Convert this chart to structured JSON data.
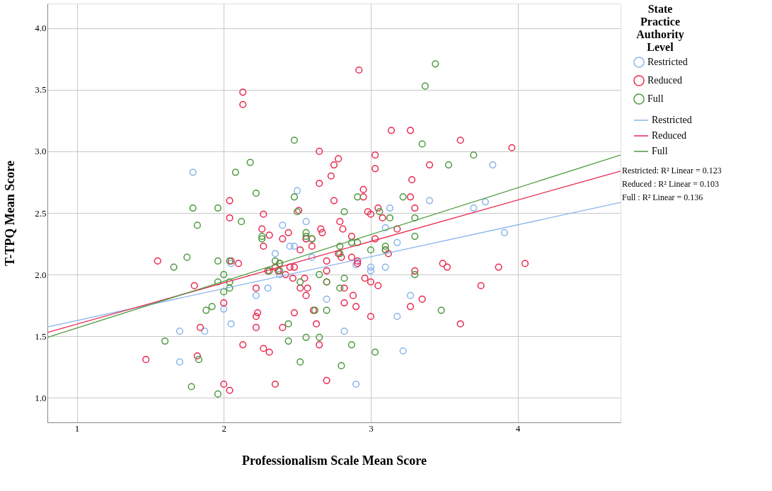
{
  "chart_data": {
    "type": "scatter",
    "xlabel": "Professionalism Scale Mean Score",
    "ylabel": "T-TPQ Mean Score",
    "legend_title": "State Practice Authority Level",
    "legend": "right",
    "grid": true,
    "xlim": [
      0.8,
      4.7
    ],
    "ylim": [
      0.8,
      4.2
    ],
    "xticks": [
      1,
      2,
      3,
      4
    ],
    "yticks": [
      {
        "value": 1,
        "label": "1.0"
      },
      {
        "value": 1.5,
        "label": "1.5"
      },
      {
        "value": 2,
        "label": "2.0"
      },
      {
        "value": 2.5,
        "label": "2.5"
      },
      {
        "value": 3,
        "label": "3.0"
      },
      {
        "value": 3.5,
        "label": "3.5"
      },
      {
        "value": 4,
        "label": "4.0"
      }
    ],
    "annotations": [
      "Restricted: R² Linear = 0.123",
      "Reduced : R² Linear = 0.103",
      "Full : R² Linear = 0.136"
    ],
    "series": [
      {
        "name": "Restricted",
        "type": "scatter",
        "color": "#8ab4ec",
        "x": [
          1.79,
          1.7,
          1.7,
          1.87,
          2.0,
          2.05,
          2.05,
          2.22,
          2.3,
          2.35,
          2.4,
          2.45,
          2.5,
          2.48,
          2.56,
          2.56,
          2.6,
          2.7,
          2.82,
          2.9,
          2.9,
          3.0,
          3.0,
          3.1,
          3.1,
          3.13,
          3.18,
          3.18,
          3.22,
          3.27,
          3.4,
          3.7,
          3.78,
          3.83,
          3.91,
          2.38
        ],
        "values": [
          2.83,
          1.54,
          1.29,
          1.54,
          1.72,
          1.6,
          2.09,
          1.83,
          1.89,
          2.17,
          2.4,
          2.23,
          2.68,
          2.23,
          2.43,
          2.29,
          2.14,
          1.8,
          1.54,
          1.11,
          2.08,
          2.06,
          2.03,
          2.06,
          2.38,
          2.54,
          2.26,
          1.66,
          1.38,
          1.83,
          2.6,
          2.54,
          2.59,
          2.89,
          2.34,
          2.0
        ]
      },
      {
        "name": "Reduced",
        "type": "scatter",
        "color": "#e8294f",
        "x": [
          1.47,
          1.55,
          1.8,
          1.82,
          1.84,
          2.0,
          2.0,
          2.04,
          2.04,
          2.04,
          2.05,
          2.1,
          2.13,
          2.13,
          2.13,
          2.22,
          2.22,
          2.22,
          2.23,
          2.26,
          2.27,
          2.27,
          2.27,
          2.3,
          2.31,
          2.31,
          2.35,
          2.35,
          2.37,
          2.38,
          2.4,
          2.4,
          2.42,
          2.44,
          2.45,
          2.47,
          2.48,
          2.48,
          2.51,
          2.52,
          2.52,
          2.55,
          2.56,
          2.56,
          2.57,
          2.6,
          2.6,
          2.61,
          2.63,
          2.65,
          2.65,
          2.66,
          2.65,
          2.67,
          2.7,
          2.7,
          2.7,
          2.7,
          2.73,
          2.75,
          2.75,
          2.78,
          2.79,
          2.78,
          2.8,
          2.81,
          2.82,
          2.82,
          2.87,
          2.87,
          2.88,
          2.9,
          2.91,
          2.91,
          2.92,
          2.95,
          2.95,
          2.96,
          2.98,
          3.0,
          3.0,
          3.0,
          3.03,
          3.03,
          3.03,
          3.05,
          3.05,
          3.08,
          3.1,
          3.12,
          3.14,
          3.18,
          3.27,
          3.28,
          3.27,
          3.27,
          3.3,
          3.3,
          3.35,
          3.4,
          3.49,
          3.52,
          3.61,
          3.61,
          3.75,
          3.87,
          3.96,
          4.05
        ],
        "values": [
          1.31,
          2.11,
          1.91,
          1.34,
          1.57,
          1.77,
          1.11,
          1.06,
          2.6,
          2.46,
          2.11,
          2.09,
          3.48,
          3.38,
          1.43,
          1.89,
          1.66,
          1.57,
          1.69,
          2.37,
          2.23,
          2.49,
          1.4,
          2.03,
          2.32,
          1.37,
          1.11,
          2.06,
          2.03,
          2.09,
          2.29,
          1.57,
          2.0,
          2.34,
          2.06,
          1.97,
          2.06,
          1.69,
          2.52,
          1.89,
          2.2,
          1.97,
          2.29,
          1.83,
          1.89,
          2.29,
          2.23,
          1.71,
          1.6,
          3.0,
          2.74,
          2.37,
          1.43,
          2.34,
          2.11,
          2.03,
          1.94,
          1.14,
          2.8,
          2.89,
          2.6,
          2.94,
          2.43,
          2.17,
          2.14,
          2.37,
          1.89,
          1.77,
          2.31,
          2.14,
          1.83,
          1.74,
          2.09,
          2.11,
          3.66,
          2.69,
          2.63,
          1.97,
          2.51,
          2.49,
          1.94,
          1.66,
          2.97,
          2.86,
          2.29,
          2.54,
          1.91,
          2.46,
          2.2,
          2.17,
          3.17,
          2.37,
          3.17,
          2.77,
          2.63,
          1.74,
          2.54,
          2.03,
          1.8,
          2.89,
          2.09,
          2.06,
          3.09,
          1.6,
          1.91,
          2.06,
          3.03,
          2.09
        ]
      },
      {
        "name": "Full",
        "type": "scatter",
        "color": "#4c9a3e",
        "x": [
          1.6,
          1.66,
          1.75,
          1.79,
          1.78,
          1.82,
          1.83,
          1.88,
          1.92,
          1.96,
          1.96,
          1.96,
          1.96,
          2.0,
          2.0,
          2.04,
          2.04,
          2.04,
          2.08,
          2.12,
          2.18,
          2.22,
          2.26,
          2.26,
          2.31,
          2.35,
          2.38,
          2.38,
          2.44,
          2.44,
          2.48,
          2.48,
          2.5,
          2.52,
          2.52,
          2.56,
          2.56,
          2.56,
          2.6,
          2.62,
          2.65,
          2.65,
          2.7,
          2.7,
          2.79,
          2.79,
          2.79,
          2.8,
          2.82,
          2.82,
          2.87,
          2.87,
          2.91,
          2.91,
          3.0,
          3.03,
          3.06,
          3.1,
          3.1,
          3.13,
          3.22,
          3.3,
          3.3,
          3.3,
          3.35,
          3.37,
          3.44,
          3.48,
          3.53,
          3.7
        ],
        "values": [
          1.46,
          2.06,
          2.14,
          2.54,
          1.09,
          2.4,
          1.31,
          1.71,
          1.74,
          2.54,
          2.11,
          1.94,
          1.03,
          2.0,
          1.86,
          1.94,
          1.89,
          2.11,
          2.83,
          2.43,
          2.91,
          2.66,
          2.31,
          2.29,
          2.03,
          2.11,
          2.09,
          2.03,
          1.6,
          1.46,
          3.09,
          2.63,
          2.51,
          1.94,
          1.29,
          2.34,
          2.31,
          1.49,
          2.29,
          1.71,
          2.0,
          1.49,
          1.71,
          1.94,
          2.23,
          2.17,
          1.89,
          1.26,
          2.51,
          1.97,
          2.26,
          1.43,
          2.63,
          2.26,
          2.2,
          1.37,
          2.51,
          2.23,
          2.2,
          2.46,
          2.63,
          2.46,
          2.31,
          2.0,
          3.06,
          3.53,
          3.71,
          1.71,
          2.89,
          2.97
        ]
      },
      {
        "name": "Restricted",
        "type": "line",
        "color": "#8ab4ec",
        "x": [
          0.8,
          4.7
        ],
        "values": [
          1.575,
          2.585
        ]
      },
      {
        "name": "Reduced",
        "type": "line",
        "color": "#e8294f",
        "x": [
          0.8,
          4.7
        ],
        "values": [
          1.53,
          2.84
        ]
      },
      {
        "name": "Full",
        "type": "line",
        "color": "#4c9a3e",
        "x": [
          0.8,
          4.7
        ],
        "values": [
          1.49,
          2.97
        ]
      }
    ]
  }
}
